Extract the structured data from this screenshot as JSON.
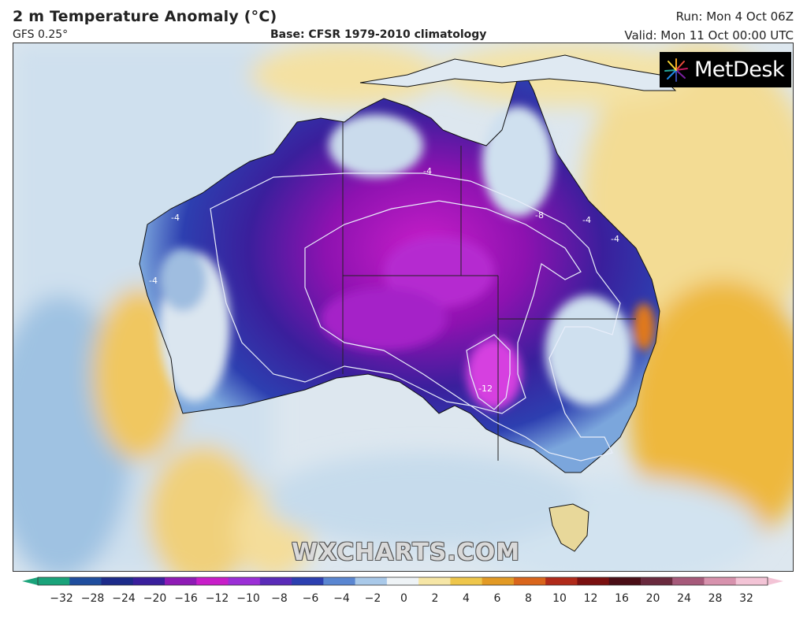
{
  "header": {
    "title": "2 m Temperature Anomaly (°C)",
    "model": "GFS 0.25°",
    "base": "Base: CFSR 1979-2010 climatology",
    "run": "Run: Mon 4 Oct 06Z",
    "valid": "Valid: Mon 11 Oct 00:00 UTC"
  },
  "logo": {
    "text": "MetDesk",
    "icon": "metdesk-burst-icon"
  },
  "watermark": "WXCHARTS.COM",
  "map": {
    "region": "Australia",
    "contour_labels": [
      "-4",
      "-4",
      "-4",
      "-4",
      "-4",
      "-8",
      "-12"
    ]
  },
  "colorbar": {
    "ticks": [
      "−32",
      "−28",
      "−24",
      "−20",
      "−16",
      "−12",
      "−10",
      "−8",
      "−6",
      "−4",
      "−2",
      "0",
      "2",
      "4",
      "6",
      "8",
      "10",
      "12",
      "16",
      "20",
      "24",
      "28",
      "32"
    ],
    "colors": [
      "#1aa37a",
      "#1f4e9e",
      "#1d2b8a",
      "#3a1f9c",
      "#8e1bb5",
      "#c81ec9",
      "#9b2fd6",
      "#5a2bb8",
      "#2c3fb0",
      "#5a86d1",
      "#a9c9e9",
      "#eef3f6",
      "#f6e6a6",
      "#eec64b",
      "#e29a25",
      "#d9651c",
      "#b02a1a",
      "#7a1010",
      "#4a0e16",
      "#6a2a3e",
      "#a65a7a",
      "#d792ad",
      "#f3c4d6"
    ],
    "colors_map": {
      "deep_purple": "#8d12b0",
      "magenta": "#c524d0",
      "blue": "#2d2fa8",
      "light_blue": "#aacbea",
      "pale": "#e8eef2",
      "yellow": "#f1d27a",
      "orange": "#e6a326"
    }
  }
}
